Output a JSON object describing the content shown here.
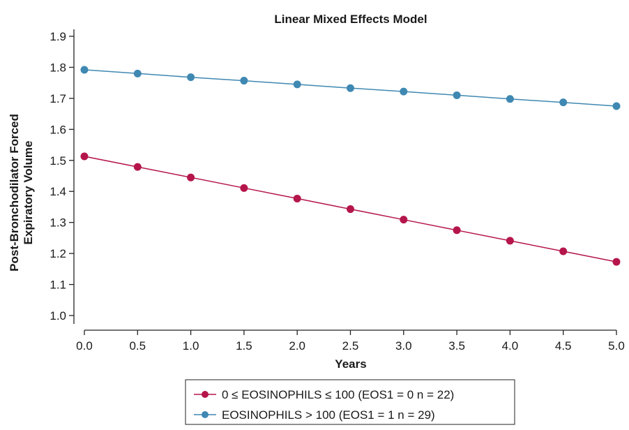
{
  "chart_data": {
    "type": "line",
    "title": "Linear Mixed Effects Model",
    "xlabel": "Years",
    "ylabel": [
      "Post-Bronchodilator Forced",
      "Expiratory Volume"
    ],
    "xlim": [
      0,
      5
    ],
    "ylim": [
      1.0,
      1.9
    ],
    "x_ticks": [
      "0.0",
      "0.5",
      "1.0",
      "1.5",
      "2.0",
      "2.5",
      "3.0",
      "3.5",
      "4.0",
      "4.5",
      "5.0"
    ],
    "y_ticks": [
      "1.0",
      "1.1",
      "1.2",
      "1.3",
      "1.4",
      "1.5",
      "1.6",
      "1.7",
      "1.8",
      "1.9"
    ],
    "grid": false,
    "legend_position": "bottom",
    "x": [
      0.0,
      0.5,
      1.0,
      1.5,
      2.0,
      2.5,
      3.0,
      3.5,
      4.0,
      4.5,
      5.0
    ],
    "series": [
      {
        "name": "0 ≤ EOSINOPHILS ≤ 100 (EOS1 = 0 n = 22)",
        "color": "#b5154b",
        "values": [
          1.513,
          1.479,
          1.445,
          1.411,
          1.377,
          1.343,
          1.309,
          1.275,
          1.241,
          1.207,
          1.173
        ]
      },
      {
        "name": "EOSINOPHILS > 100 (EOS1 = 1 n = 29)",
        "color": "#3f88b2",
        "values": [
          1.792,
          1.78,
          1.768,
          1.757,
          1.745,
          1.733,
          1.722,
          1.71,
          1.698,
          1.687,
          1.675
        ]
      }
    ]
  }
}
